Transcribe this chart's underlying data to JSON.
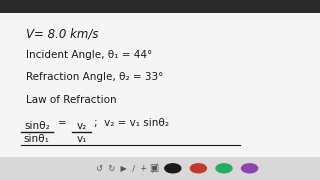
{
  "bg_color": "#f5f5f5",
  "text_color": "#1a1a1a",
  "toolbar_color": "#e0e0e0",
  "line1": "V= 8.0 km/s",
  "line2": "Incident Angle, θ₁ = 44°",
  "line3": "Refraction Angle, θ₂ = 33°",
  "line4": "Law of Refraction",
  "frac_num": "sinθ₂",
  "frac_den": "sinθ₁",
  "frac_rhs_num": "v₂",
  "frac_rhs_den": "v₁",
  "rhs_extra": ";  v₂ = v₁ sinθ₂",
  "font_size_main": 8.5,
  "font_size_label": 7.5,
  "font_size_eq": 7.5
}
